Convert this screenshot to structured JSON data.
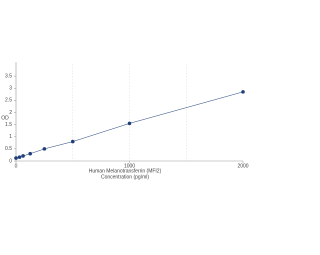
{
  "chart_data": {
    "type": "scatter",
    "x_label": "Human Melanotransferrin (MFI2)",
    "x_label_2": "Concentration (pg/ml)",
    "y_label": "OD",
    "series": [
      {
        "color": "#1f3f7a",
        "x": [
          0,
          31.25,
          62.5,
          125,
          250,
          500,
          1000,
          2000
        ],
        "values": [
          0.12,
          0.16,
          0.21,
          0.3,
          0.5,
          0.8,
          1.55,
          2.85
        ]
      }
    ],
    "xlim": [
      0,
      2000
    ],
    "xticks": [
      0,
      1000,
      2000
    ],
    "ylim": [
      0,
      4
    ],
    "yticks": [
      0,
      0.5,
      1,
      1.5,
      2,
      2.5,
      3,
      3.5
    ],
    "vertical_grid": [
      500,
      1000,
      1500
    ]
  }
}
